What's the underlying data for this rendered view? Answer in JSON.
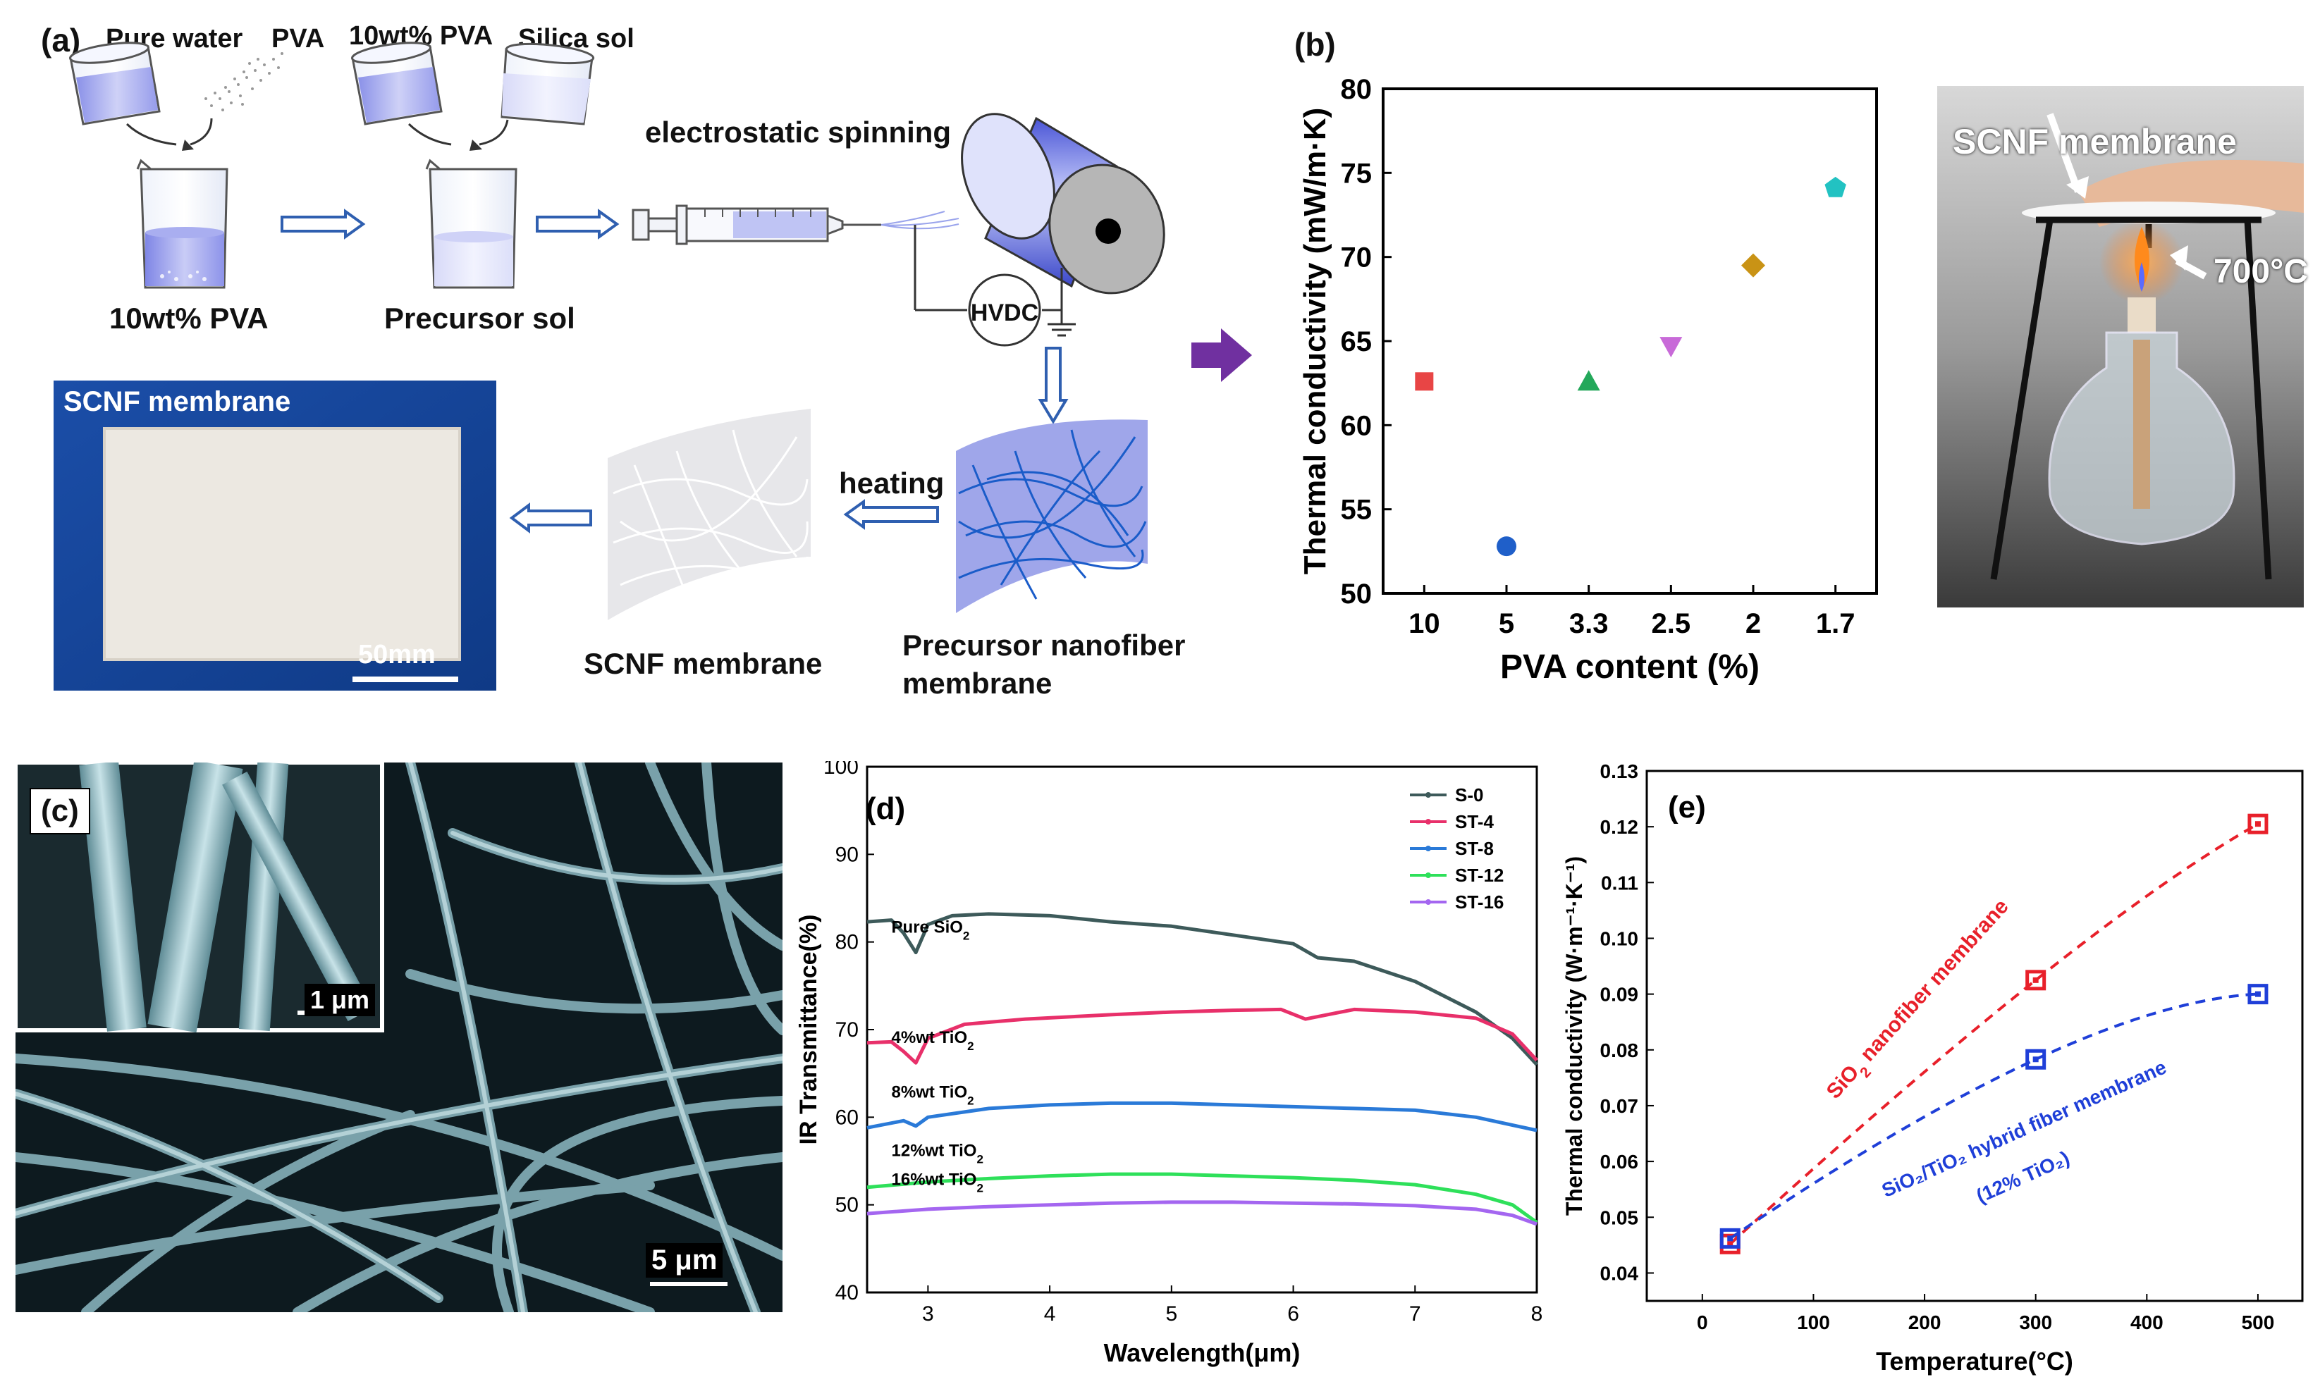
{
  "panel_a": {
    "letter": "(a)",
    "pure_water": "Pure water",
    "pva": "PVA",
    "pva10_top": "10wt% PVA",
    "silica_sol": "Silica sol",
    "pva10_bottom": "10wt% PVA",
    "precursor_sol": "Precursor sol",
    "electrospinning": "electrostatic spinning",
    "hvdc": "HVDC",
    "heating": "heating",
    "precursor_membrane_1": "Precursor nanofiber",
    "precursor_membrane_2": "membrane",
    "scnf_membrane": "SCNF membrane",
    "photo_label": "SCNF membrane",
    "scale_bar": "50mm"
  },
  "panel_b": {
    "letter": "(b)",
    "photo_label": "SCNF membrane",
    "flame_temp": "700°C"
  },
  "panel_c": {
    "letter": "(c)",
    "inset_scale": "1 μm",
    "main_scale": "5 μm"
  },
  "colors": {
    "accent_blue": "#2f5fb0",
    "purple_arrow": "#7030a0"
  },
  "chart_data": [
    {
      "id": "b",
      "type": "scatter",
      "xlabel": "PVA content (%)",
      "ylabel": "Thermal conductivity (mW/m·K)",
      "categories": [
        "10",
        "5",
        "3.3",
        "2.5",
        "2",
        "1.7"
      ],
      "values": [
        62.6,
        52.8,
        62.6,
        64.7,
        69.5,
        74.1
      ],
      "colors": [
        "#e84545",
        "#1f5fc9",
        "#23a85a",
        "#c86ad8",
        "#c99315",
        "#22c2c2"
      ],
      "markers": [
        "square",
        "circle",
        "triangle",
        "triangle-down",
        "diamond",
        "pentagon"
      ],
      "ylim": [
        50,
        80
      ],
      "yticks": [
        50,
        55,
        60,
        65,
        70,
        75,
        80
      ]
    },
    {
      "id": "d",
      "letter": "(d)",
      "type": "line",
      "xlabel": "Wavelength(μm)",
      "ylabel": "IR Transmittance(%)",
      "xlim": [
        2.5,
        8
      ],
      "ylim": [
        40,
        100
      ],
      "xticks": [
        3,
        4,
        5,
        6,
        7,
        8
      ],
      "yticks": [
        40,
        50,
        60,
        70,
        80,
        90,
        100
      ],
      "series": [
        {
          "name": "S-0",
          "color": "#3d5a5a",
          "annotation": "Pure SiO",
          "sub": "2",
          "x": [
            2.5,
            2.7,
            2.8,
            2.9,
            3.0,
            3.2,
            3.5,
            4.0,
            4.5,
            5.0,
            5.5,
            6.0,
            6.2,
            6.5,
            7.0,
            7.5,
            7.8,
            8.0
          ],
          "y": [
            82.3,
            82.5,
            81.0,
            78.8,
            82.0,
            83.0,
            83.2,
            83.0,
            82.3,
            81.8,
            80.8,
            79.8,
            78.2,
            77.8,
            75.5,
            72.0,
            69.0,
            66.0
          ]
        },
        {
          "name": "ST-4",
          "color": "#e8306a",
          "annotation": "4%wt TiO",
          "sub": "2",
          "x": [
            2.5,
            2.7,
            2.8,
            2.9,
            3.0,
            3.3,
            3.8,
            4.5,
            5.0,
            5.5,
            5.9,
            6.1,
            6.5,
            7.0,
            7.5,
            7.8,
            8.0
          ],
          "y": [
            68.5,
            68.6,
            67.5,
            66.2,
            69.0,
            70.6,
            71.2,
            71.7,
            72.0,
            72.2,
            72.3,
            71.2,
            72.3,
            72.0,
            71.3,
            69.5,
            66.5
          ]
        },
        {
          "name": "ST-8",
          "color": "#2a7ad8",
          "annotation": "8%wt TiO",
          "sub": "2",
          "x": [
            2.5,
            2.8,
            2.9,
            3.0,
            3.5,
            4.0,
            4.5,
            5.0,
            5.5,
            6.0,
            6.5,
            7.0,
            7.5,
            8.0
          ],
          "y": [
            58.8,
            59.6,
            59.0,
            60.0,
            61.0,
            61.4,
            61.6,
            61.6,
            61.4,
            61.2,
            61.0,
            60.8,
            60.0,
            58.5
          ]
        },
        {
          "name": "ST-12",
          "color": "#2ee05a",
          "annotation": "12%wt TiO",
          "sub": "2",
          "x": [
            2.5,
            3.0,
            3.5,
            4.0,
            4.5,
            5.0,
            5.5,
            6.0,
            6.5,
            7.0,
            7.5,
            7.8,
            8.0
          ],
          "y": [
            52.0,
            52.6,
            53.0,
            53.3,
            53.5,
            53.5,
            53.3,
            53.1,
            52.8,
            52.3,
            51.2,
            50.0,
            48.0
          ]
        },
        {
          "name": "ST-16",
          "color": "#a466f0",
          "annotation": "16%wt TiO",
          "sub": "2",
          "x": [
            2.5,
            3.0,
            3.5,
            4.0,
            4.5,
            5.0,
            5.5,
            6.0,
            6.5,
            7.0,
            7.5,
            7.8,
            8.0
          ],
          "y": [
            49.0,
            49.5,
            49.8,
            50.0,
            50.2,
            50.3,
            50.3,
            50.2,
            50.1,
            49.9,
            49.5,
            48.8,
            47.8
          ]
        }
      ]
    },
    {
      "id": "e",
      "letter": "(e)",
      "type": "scatter",
      "xlabel": "Temperature(°C)",
      "ylabel": "Thermal conductivity (W·m⁻¹·K⁻¹)",
      "xlim": [
        -50,
        540
      ],
      "ylim": [
        0.035,
        0.13
      ],
      "xticks": [
        0,
        100,
        200,
        300,
        400,
        500
      ],
      "yticks": [
        0.04,
        0.05,
        0.06,
        0.07,
        0.08,
        0.09,
        0.1,
        0.11,
        0.12,
        0.13
      ],
      "series": [
        {
          "name": "SiO2 nanofiber membrane",
          "label_main": "SiO",
          "label_sub": "2",
          "label_tail": " nanofiber membrane",
          "color": "#e8202a",
          "x": [
            25,
            300,
            500
          ],
          "y": [
            0.0452,
            0.0925,
            0.1205
          ]
        },
        {
          "name": "SiO2/TiO2 hybrid fiber membrane (12% TiO2)",
          "label_line1": "SiO₂/TiO₂ hybrid fiber membrane",
          "label_line2": "(12% TiO₂)",
          "color": "#1f3fd8",
          "x": [
            25,
            300,
            500
          ],
          "y": [
            0.0462,
            0.0783,
            0.09
          ]
        }
      ]
    }
  ]
}
